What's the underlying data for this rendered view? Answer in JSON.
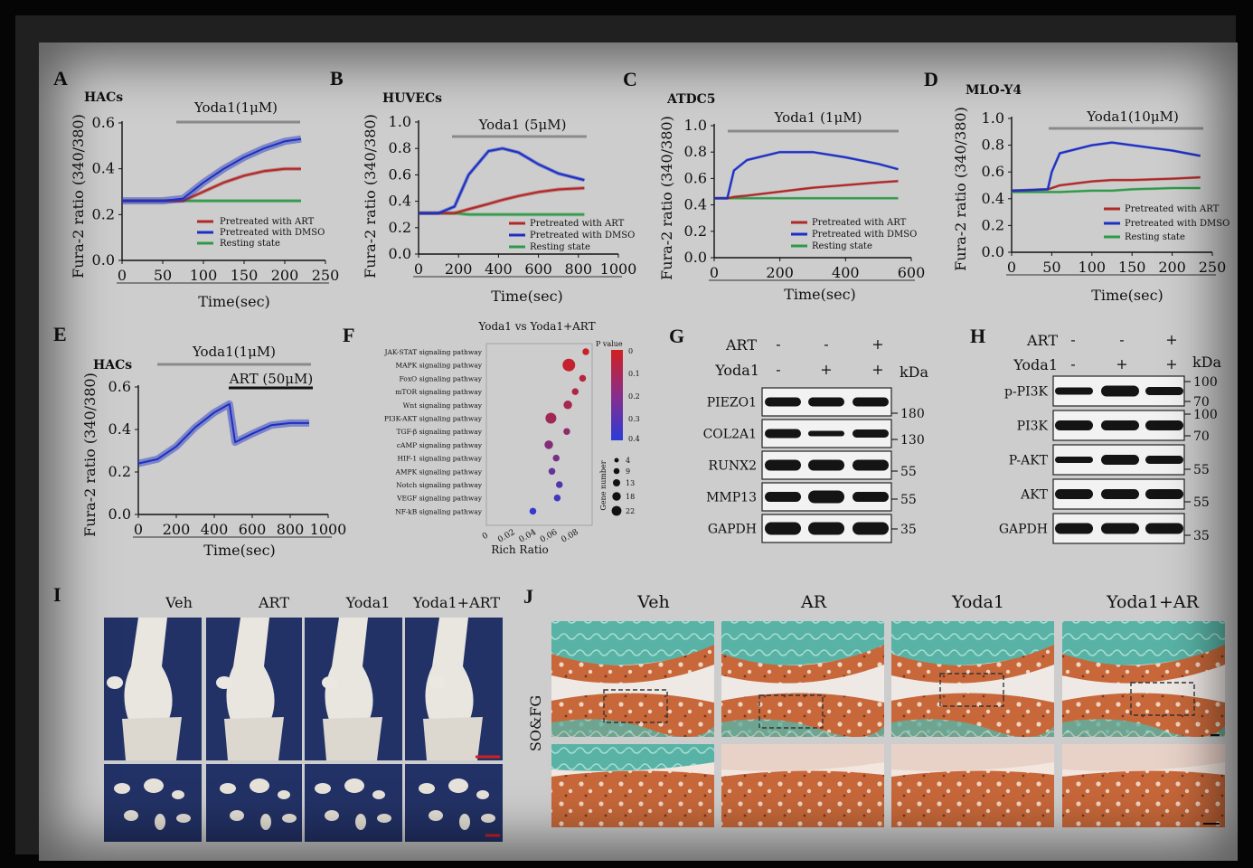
{
  "panels": {
    "A": {
      "letter": "A",
      "title": "HACs",
      "treatment": "Yoda1(1μM)",
      "ylabel": "Fura-2 ratio (340/380)",
      "xlabel": "Time(sec)"
    },
    "B": {
      "letter": "B",
      "title": "HUVECs",
      "treatment": "Yoda1 (5μM)",
      "ylabel": "Fura-2 ratio (340/380)",
      "xlabel": "Time(sec)"
    },
    "C": {
      "letter": "C",
      "title": "ATDC5",
      "treatment": "Yoda1 (1μM)",
      "ylabel": "Fura-2 ratio (340/380)",
      "xlabel": "Time(sec)"
    },
    "D": {
      "letter": "D",
      "title": "MLO-Y4",
      "treatment": "Yoda1(10μM)",
      "ylabel": "Fura-2 ratio (340/380)",
      "xlabel": "Time(sec)"
    },
    "E": {
      "letter": "E",
      "title": "HACs",
      "treatment": "Yoda1(1μM)",
      "treatment2": "ART (50μM)",
      "ylabel": "Fura-2 ratio (340/380)",
      "xlabel": "Time(sec)"
    },
    "F": {
      "letter": "F",
      "title": "Yoda1 vs Yoda1+ART",
      "xlabel": "Rich Ratio",
      "pvalue_label": "P value",
      "gene_label": "Gene number",
      "pvalue_ticks": [
        "0",
        "0.1",
        "0.2",
        "0.3",
        "0.4"
      ],
      "gene_ticks": [
        "4",
        "9",
        "13",
        "18",
        "22"
      ]
    },
    "G": {
      "letter": "G",
      "row_art": "ART",
      "row_yoda": "Yoda1",
      "kda": "kDa",
      "art_signs": [
        "-",
        "-",
        "+"
      ],
      "yoda_signs": [
        "-",
        "+",
        "+"
      ],
      "bands": [
        "PIEZO1",
        "COL2A1",
        "RUNX2",
        "MMP13",
        "GAPDH"
      ],
      "markers": [
        "180",
        "130",
        "55",
        "55",
        "35"
      ]
    },
    "H": {
      "letter": "H",
      "row_art": "ART",
      "row_yoda": "Yoda1",
      "kda": "kDa",
      "art_signs": [
        "-",
        "-",
        "+"
      ],
      "yoda_signs": [
        "-",
        "+",
        "+"
      ],
      "bands": [
        "p-PI3K",
        "PI3K",
        "P-AKT",
        "AKT",
        "GAPDH"
      ],
      "markers": [
        "100",
        "70",
        "100",
        "70",
        "55",
        "55",
        "35"
      ]
    },
    "I": {
      "letter": "I",
      "groups": [
        "Veh",
        "ART",
        "Yoda1",
        "Yoda1+ART"
      ]
    },
    "J": {
      "letter": "J",
      "groups": [
        "Veh",
        "AR",
        "Yoda1",
        "Yoda1+AR"
      ],
      "stain": "SO&FG"
    }
  },
  "legend": [
    "Pretreated with ART",
    "Pretreated with DMSO",
    "Resting state"
  ],
  "colors": {
    "art": "#b02828",
    "dmso": "#1c2fc4",
    "rest": "#2e9a48",
    "bone_bg": "#233266",
    "cartilage": "#c8683a",
    "stroma": "#58b3a6"
  },
  "chart_data": [
    {
      "type": "line",
      "panel": "A",
      "title": "HACs",
      "xlabel": "Time(sec)",
      "ylabel": "Fura-2 ratio (340/380)",
      "xlim": [
        0,
        250
      ],
      "ylim": [
        0,
        0.6
      ],
      "xticks": [
        0,
        50,
        100,
        150,
        200,
        250
      ],
      "yticks": [
        0,
        0.2,
        0.4,
        0.6
      ],
      "x": [
        0,
        25,
        50,
        75,
        100,
        125,
        150,
        175,
        200,
        220
      ],
      "series": [
        {
          "name": "Pretreated with ART",
          "values": [
            0.26,
            0.26,
            0.26,
            0.26,
            0.3,
            0.34,
            0.37,
            0.39,
            0.4,
            0.4
          ]
        },
        {
          "name": "Pretreated with DMSO",
          "values": [
            0.26,
            0.26,
            0.26,
            0.27,
            0.34,
            0.4,
            0.45,
            0.49,
            0.52,
            0.53
          ]
        },
        {
          "name": "Resting state",
          "values": [
            0.26,
            0.26,
            0.26,
            0.26,
            0.26,
            0.26,
            0.26,
            0.26,
            0.26,
            0.26
          ]
        }
      ]
    },
    {
      "type": "line",
      "panel": "B",
      "title": "HUVECs",
      "xlabel": "Time(sec)",
      "ylabel": "Fura-2 ratio (340/380)",
      "xlim": [
        0,
        1000
      ],
      "ylim": [
        0,
        1.0
      ],
      "xticks": [
        0,
        200,
        400,
        600,
        800,
        1000
      ],
      "yticks": [
        0,
        0.2,
        0.4,
        0.6,
        0.8,
        1.0
      ],
      "x": [
        0,
        100,
        180,
        250,
        350,
        420,
        500,
        600,
        700,
        830
      ],
      "series": [
        {
          "name": "Pretreated with ART",
          "values": [
            0.31,
            0.31,
            0.31,
            0.34,
            0.38,
            0.41,
            0.44,
            0.47,
            0.49,
            0.5
          ]
        },
        {
          "name": "Pretreated with DMSO",
          "values": [
            0.31,
            0.31,
            0.36,
            0.6,
            0.78,
            0.8,
            0.77,
            0.68,
            0.61,
            0.56
          ]
        },
        {
          "name": "Resting state",
          "values": [
            0.31,
            0.31,
            0.31,
            0.3,
            0.3,
            0.3,
            0.3,
            0.3,
            0.3,
            0.3
          ]
        }
      ]
    },
    {
      "type": "line",
      "panel": "C",
      "title": "ATDC5",
      "xlabel": "Time(sec)",
      "ylabel": "Fura-2 ratio (340/380)",
      "xlim": [
        0,
        600
      ],
      "ylim": [
        0,
        1.0
      ],
      "xticks": [
        0,
        200,
        400,
        600
      ],
      "yticks": [
        0,
        0.2,
        0.4,
        0.6,
        0.8,
        1.0
      ],
      "x": [
        0,
        40,
        60,
        100,
        200,
        300,
        400,
        500,
        560
      ],
      "series": [
        {
          "name": "Pretreated with ART",
          "values": [
            0.45,
            0.45,
            0.46,
            0.47,
            0.5,
            0.53,
            0.55,
            0.57,
            0.58
          ]
        },
        {
          "name": "Pretreated with DMSO",
          "values": [
            0.45,
            0.45,
            0.66,
            0.74,
            0.8,
            0.8,
            0.76,
            0.71,
            0.67
          ]
        },
        {
          "name": "Resting state",
          "values": [
            0.45,
            0.45,
            0.45,
            0.45,
            0.45,
            0.45,
            0.45,
            0.45,
            0.45
          ]
        }
      ]
    },
    {
      "type": "line",
      "panel": "D",
      "title": "MLO-Y4",
      "xlabel": "Time(sec)",
      "ylabel": "Fura-2 ratio (340/380)",
      "xlim": [
        0,
        250
      ],
      "ylim": [
        0,
        1.0
      ],
      "xticks": [
        0,
        50,
        100,
        150,
        200,
        250
      ],
      "yticks": [
        0,
        0.2,
        0.4,
        0.6,
        0.8,
        1.0
      ],
      "x": [
        0,
        45,
        50,
        60,
        100,
        125,
        150,
        200,
        235
      ],
      "series": [
        {
          "name": "Pretreated with ART",
          "values": [
            0.46,
            0.47,
            0.48,
            0.5,
            0.53,
            0.54,
            0.54,
            0.55,
            0.56
          ]
        },
        {
          "name": "Pretreated with DMSO",
          "values": [
            0.46,
            0.47,
            0.6,
            0.74,
            0.8,
            0.82,
            0.8,
            0.76,
            0.72
          ]
        },
        {
          "name": "Resting state",
          "values": [
            0.45,
            0.45,
            0.45,
            0.45,
            0.46,
            0.46,
            0.47,
            0.48,
            0.48
          ]
        }
      ]
    },
    {
      "type": "line",
      "panel": "E",
      "title": "HACs",
      "xlabel": "Time(sec)",
      "ylabel": "Fura-2 ratio (340/380)",
      "xlim": [
        0,
        1000
      ],
      "ylim": [
        0,
        0.6
      ],
      "xticks": [
        0,
        200,
        400,
        600,
        800,
        1000
      ],
      "yticks": [
        0,
        0.2,
        0.4,
        0.6
      ],
      "x": [
        0,
        100,
        200,
        300,
        400,
        480,
        510,
        600,
        700,
        800,
        900
      ],
      "series": [
        {
          "name": "",
          "values": [
            0.24,
            0.26,
            0.32,
            0.41,
            0.48,
            0.52,
            0.34,
            0.38,
            0.42,
            0.43,
            0.43
          ]
        }
      ]
    },
    {
      "type": "scatter",
      "panel": "F",
      "title": "Yoda1 vs Yoda1+ART",
      "xlabel": "Rich Ratio",
      "ylabel": "",
      "xlim": [
        0,
        0.1
      ],
      "xticks": [
        0,
        0.02,
        0.04,
        0.06,
        0.08
      ],
      "categories": [
        "JAK-STAT signaling pathway",
        "MAPK signaling pathway",
        "FoxO signaling pathway",
        "mTOR signaling pathway",
        "Wnt signaling pathway",
        "PI3K-AKT signaling pathway",
        "TGF-β signaling pathway",
        "cAMP signaling pathway",
        "HIF-1 signaling pathway",
        "AMPK signaling pathway",
        "Notch signaling pathway",
        "VEGF signaling pathway",
        "NF-kB signaling pathway"
      ],
      "rich_ratio": [
        0.094,
        0.078,
        0.091,
        0.084,
        0.077,
        0.061,
        0.076,
        0.059,
        0.066,
        0.062,
        0.069,
        0.067,
        0.044
      ],
      "p_value": [
        0.02,
        0.03,
        0.06,
        0.08,
        0.1,
        0.12,
        0.16,
        0.19,
        0.22,
        0.26,
        0.3,
        0.34,
        0.38
      ],
      "gene_number": [
        9,
        22,
        9,
        9,
        13,
        18,
        9,
        13,
        9,
        9,
        9,
        9,
        9
      ]
    }
  ]
}
